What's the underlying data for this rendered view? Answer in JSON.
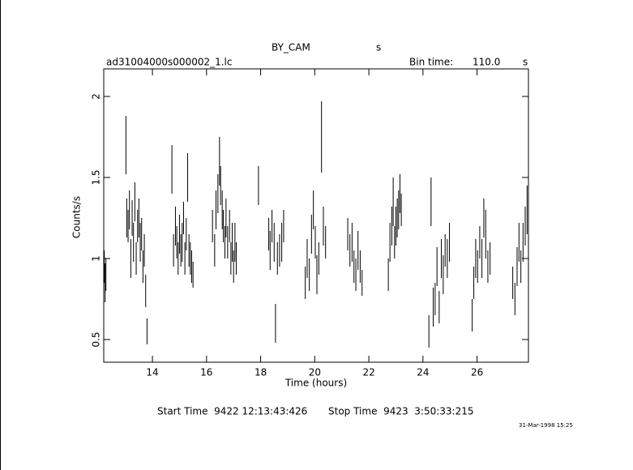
{
  "chart_data": {
    "type": "errorbar",
    "title": "BY_CAM",
    "title_unit": "s",
    "file": "ad31004000s000002_1.lc",
    "bin_label": "Bin time:",
    "bin_value": "110.0",
    "bin_unit": "s",
    "ylabel": "Counts/s",
    "xlabel": "Time (hours)",
    "start_time": "Start Time  9422 12:13:43:426",
    "stop_time": "Stop Time  9423  3:50:33:215",
    "date": "31-Mar-1998 15:25",
    "color": "#000000",
    "xlim": [
      12.2,
      27.9
    ],
    "xticks": [
      14,
      16,
      18,
      20,
      22,
      24,
      26
    ],
    "ylim": [
      0.36,
      2.17
    ],
    "yticks": [
      0.5,
      1,
      1.5,
      2
    ],
    "x": [
      12.22,
      12.25,
      12.28,
      13.02,
      13.05,
      13.1,
      13.15,
      13.2,
      13.25,
      13.3,
      13.35,
      13.4,
      13.45,
      13.5,
      13.55,
      13.6,
      13.65,
      13.7,
      13.75,
      13.8,
      14.72,
      14.78,
      14.85,
      14.9,
      14.95,
      15.0,
      15.05,
      15.1,
      15.15,
      15.2,
      15.25,
      15.3,
      15.35,
      15.4,
      15.45,
      15.5,
      16.22,
      16.3,
      16.35,
      16.42,
      16.48,
      16.52,
      16.58,
      16.62,
      16.68,
      16.72,
      16.78,
      16.85,
      16.9,
      16.95,
      17.0,
      17.05,
      17.1,
      17.92,
      18.3,
      18.35,
      18.42,
      18.5,
      18.55,
      18.62,
      18.7,
      18.78,
      18.85,
      19.65,
      19.72,
      19.8,
      19.88,
      19.95,
      20.02,
      20.08,
      20.15,
      20.25,
      20.32,
      20.4,
      21.22,
      21.3,
      21.38,
      21.45,
      21.52,
      21.6,
      21.68,
      21.75,
      22.72,
      22.78,
      22.85,
      22.9,
      22.95,
      23.0,
      23.05,
      23.1,
      23.15,
      23.2,
      24.22,
      24.3,
      24.38,
      24.45,
      24.52,
      24.6,
      24.68,
      24.75,
      24.82,
      24.9,
      24.98,
      25.82,
      25.88,
      25.95,
      26.02,
      26.1,
      26.18,
      26.25,
      26.32,
      26.4,
      26.48,
      27.32,
      27.4,
      27.48,
      27.55,
      27.62,
      27.7,
      27.78,
      27.85
    ],
    "values": [
      0.95,
      0.85,
      0.9,
      1.7,
      1.25,
      1.2,
      1.3,
      1.0,
      1.25,
      1.1,
      1.35,
      1.0,
      1.2,
      1.25,
      1.1,
      1.15,
      0.95,
      1.05,
      0.8,
      0.55,
      1.55,
      1.05,
      1.2,
      1.1,
      1.0,
      1.15,
      1.05,
      1.1,
      1.25,
      1.0,
      1.15,
      1.5,
      1.05,
      1.0,
      0.95,
      0.9,
      1.2,
      1.05,
      1.3,
      1.4,
      1.6,
      1.45,
      1.3,
      1.2,
      1.1,
      1.25,
      1.1,
      1.2,
      1.0,
      1.1,
      0.95,
      1.1,
      1.0,
      1.45,
      1.15,
      1.05,
      1.2,
      1.1,
      0.6,
      1.0,
      1.05,
      1.1,
      1.2,
      0.85,
      1.0,
      0.9,
      1.15,
      1.3,
      1.1,
      0.9,
      1.0,
      1.75,
      1.2,
      1.1,
      1.15,
      1.05,
      1.1,
      0.95,
      0.9,
      1.05,
      0.95,
      0.85,
      0.9,
      1.1,
      1.2,
      1.35,
      1.1,
      1.2,
      1.25,
      1.3,
      1.4,
      1.3,
      0.55,
      1.35,
      0.7,
      0.75,
      0.95,
      0.7,
      1.0,
      0.9,
      1.05,
      1.0,
      1.1,
      0.65,
      0.85,
      1.0,
      0.95,
      1.1,
      1.0,
      1.25,
      1.15,
      0.95,
      1.0,
      0.85,
      0.75,
      0.95,
      1.1,
      0.95,
      1.1,
      1.2,
      1.3
    ],
    "errors": [
      0.1,
      0.12,
      0.1,
      0.18,
      0.12,
      0.1,
      0.12,
      0.12,
      0.11,
      0.12,
      0.12,
      0.1,
      0.1,
      0.12,
      0.12,
      0.1,
      0.1,
      0.1,
      0.1,
      0.08,
      0.15,
      0.1,
      0.12,
      0.1,
      0.1,
      0.12,
      0.1,
      0.12,
      0.1,
      0.1,
      0.1,
      0.15,
      0.1,
      0.1,
      0.1,
      0.08,
      0.1,
      0.1,
      0.12,
      0.12,
      0.15,
      0.12,
      0.12,
      0.1,
      0.1,
      0.12,
      0.1,
      0.1,
      0.1,
      0.12,
      0.1,
      0.12,
      0.1,
      0.12,
      0.1,
      0.12,
      0.1,
      0.12,
      0.12,
      0.1,
      0.1,
      0.12,
      0.1,
      0.1,
      0.12,
      0.1,
      0.12,
      0.12,
      0.1,
      0.12,
      0.1,
      0.22,
      0.12,
      0.1,
      0.1,
      0.1,
      0.12,
      0.1,
      0.1,
      0.12,
      0.1,
      0.08,
      0.1,
      0.12,
      0.12,
      0.15,
      0.1,
      0.12,
      0.12,
      0.12,
      0.12,
      0.1,
      0.1,
      0.15,
      0.12,
      0.1,
      0.12,
      0.1,
      0.12,
      0.12,
      0.1,
      0.12,
      0.12,
      0.1,
      0.1,
      0.12,
      0.1,
      0.1,
      0.12,
      0.12,
      0.15,
      0.1,
      0.1,
      0.1,
      0.1,
      0.12,
      0.12,
      0.1,
      0.12,
      0.12,
      0.15
    ]
  }
}
